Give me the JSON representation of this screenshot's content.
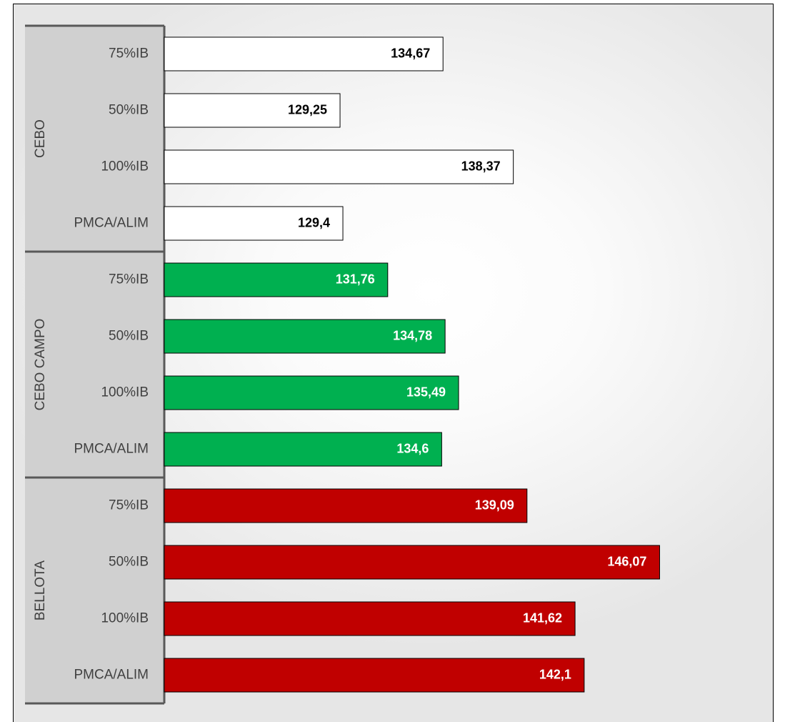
{
  "chart_data": {
    "type": "bar",
    "orientation": "horizontal",
    "xlim": [
      120,
      150
    ],
    "grid": false,
    "legend": "none",
    "groups": [
      {
        "label": "CEBO",
        "color": "#ffffff",
        "label_color": "#000000",
        "bars": [
          {
            "category": "75%IB",
            "value": 134.67,
            "label": "134,67"
          },
          {
            "category": "50%IB",
            "value": 129.25,
            "label": "129,25"
          },
          {
            "category": "100%IB",
            "value": 138.37,
            "label": "138,37"
          },
          {
            "category": "PMCA/ALIM",
            "value": 129.4,
            "label": "129,4"
          }
        ]
      },
      {
        "label": "CEBO CAMPO",
        "color": "#00b050",
        "label_color": "#ffffff",
        "bars": [
          {
            "category": "75%IB",
            "value": 131.76,
            "label": "131,76"
          },
          {
            "category": "50%IB",
            "value": 134.78,
            "label": "134,78"
          },
          {
            "category": "100%IB",
            "value": 135.49,
            "label": "135,49"
          },
          {
            "category": "PMCA/ALIM",
            "value": 134.6,
            "label": "134,6"
          }
        ]
      },
      {
        "label": "BELLOTA",
        "color": "#c00000",
        "label_color": "#ffffff",
        "bars": [
          {
            "category": "75%IB",
            "value": 139.09,
            "label": "139,09"
          },
          {
            "category": "50%IB",
            "value": 146.07,
            "label": "146,07"
          },
          {
            "category": "100%IB",
            "value": 141.62,
            "label": "141,62"
          },
          {
            "category": "PMCA/ALIM",
            "value": 142.1,
            "label": "142,1"
          }
        ]
      }
    ]
  }
}
